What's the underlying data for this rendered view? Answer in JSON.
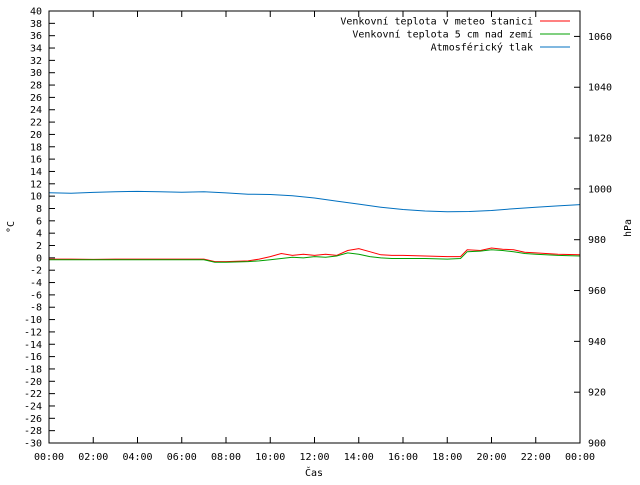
{
  "chart_data": {
    "type": "line",
    "title": "",
    "xlabel": "Čas",
    "ylabel": "°C",
    "y2label": "hPa",
    "x_ticks": [
      "00:00",
      "02:00",
      "04:00",
      "06:00",
      "08:00",
      "10:00",
      "12:00",
      "14:00",
      "16:00",
      "18:00",
      "20:00",
      "22:00",
      "00:00"
    ],
    "xlim_hours": [
      0,
      24
    ],
    "ylim": [
      -30,
      40
    ],
    "y_tick_step": 2,
    "y2lim": [
      900,
      1070
    ],
    "y2_ticks": [
      900,
      920,
      940,
      960,
      980,
      1000,
      1020,
      1040,
      1060
    ],
    "grid": false,
    "legend_placement": "top-right",
    "series": [
      {
        "name": "Venkovní teplota v meteo stanici",
        "axis": "left",
        "color": "#ff0000",
        "points": [
          [
            0,
            -0.2
          ],
          [
            1,
            -0.2
          ],
          [
            2,
            -0.25
          ],
          [
            3,
            -0.2
          ],
          [
            4,
            -0.2
          ],
          [
            5,
            -0.2
          ],
          [
            6,
            -0.2
          ],
          [
            7,
            -0.2
          ],
          [
            7.5,
            -0.6
          ],
          [
            8,
            -0.6
          ],
          [
            9,
            -0.5
          ],
          [
            9.5,
            -0.2
          ],
          [
            10,
            0.2
          ],
          [
            10.5,
            0.7
          ],
          [
            11,
            0.4
          ],
          [
            11.5,
            0.6
          ],
          [
            12,
            0.4
          ],
          [
            12.5,
            0.6
          ],
          [
            13,
            0.4
          ],
          [
            13.5,
            1.2
          ],
          [
            14,
            1.5
          ],
          [
            14.5,
            1.0
          ],
          [
            15,
            0.5
          ],
          [
            15.5,
            0.4
          ],
          [
            16,
            0.4
          ],
          [
            17,
            0.3
          ],
          [
            18,
            0.2
          ],
          [
            18.6,
            0.2
          ],
          [
            18.9,
            1.3
          ],
          [
            19.5,
            1.2
          ],
          [
            20,
            1.6
          ],
          [
            20.5,
            1.4
          ],
          [
            21,
            1.3
          ],
          [
            21.5,
            0.9
          ],
          [
            22,
            0.8
          ],
          [
            23,
            0.6
          ],
          [
            24,
            0.5
          ]
        ]
      },
      {
        "name": "Venkovní teplota 5 cm nad zemí",
        "axis": "left",
        "color": "#00a000",
        "points": [
          [
            0,
            -0.3
          ],
          [
            1,
            -0.3
          ],
          [
            2,
            -0.3
          ],
          [
            3,
            -0.3
          ],
          [
            4,
            -0.3
          ],
          [
            5,
            -0.3
          ],
          [
            6,
            -0.3
          ],
          [
            7,
            -0.3
          ],
          [
            7.5,
            -0.7
          ],
          [
            8,
            -0.7
          ],
          [
            9,
            -0.6
          ],
          [
            9.5,
            -0.5
          ],
          [
            10,
            -0.3
          ],
          [
            10.5,
            -0.1
          ],
          [
            11,
            0.1
          ],
          [
            11.5,
            0.0
          ],
          [
            12,
            0.2
          ],
          [
            12.5,
            0.1
          ],
          [
            13,
            0.3
          ],
          [
            13.5,
            0.8
          ],
          [
            14,
            0.6
          ],
          [
            14.5,
            0.2
          ],
          [
            15,
            0.0
          ],
          [
            15.5,
            -0.1
          ],
          [
            16,
            -0.1
          ],
          [
            17,
            -0.1
          ],
          [
            18,
            -0.2
          ],
          [
            18.6,
            -0.1
          ],
          [
            18.9,
            1.0
          ],
          [
            19.5,
            1.1
          ],
          [
            20,
            1.3
          ],
          [
            20.5,
            1.2
          ],
          [
            21,
            1.0
          ],
          [
            21.5,
            0.7
          ],
          [
            22,
            0.6
          ],
          [
            23,
            0.4
          ],
          [
            24,
            0.3
          ]
        ]
      },
      {
        "name": "Atmosférický tlak",
        "axis": "right",
        "color": "#0070c0",
        "points": [
          [
            0,
            998.5
          ],
          [
            1,
            998.3
          ],
          [
            2,
            998.6
          ],
          [
            3,
            998.9
          ],
          [
            4,
            999.0
          ],
          [
            5,
            998.9
          ],
          [
            6,
            998.7
          ],
          [
            7,
            998.9
          ],
          [
            8,
            998.4
          ],
          [
            9,
            997.9
          ],
          [
            10,
            997.8
          ],
          [
            11,
            997.3
          ],
          [
            12,
            996.4
          ],
          [
            13,
            995.2
          ],
          [
            14,
            994.0
          ],
          [
            15,
            992.8
          ],
          [
            16,
            991.9
          ],
          [
            17,
            991.3
          ],
          [
            18,
            991.0
          ],
          [
            19,
            991.1
          ],
          [
            20,
            991.5
          ],
          [
            21,
            992.2
          ],
          [
            22,
            992.8
          ],
          [
            23,
            993.3
          ],
          [
            24,
            993.8
          ]
        ]
      }
    ]
  }
}
